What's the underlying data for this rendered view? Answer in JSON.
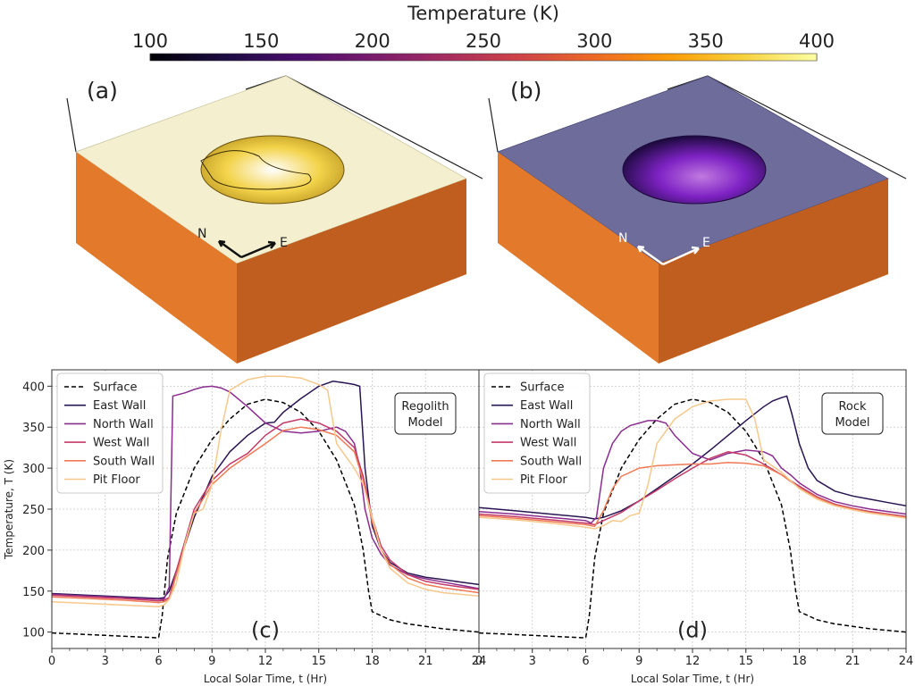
{
  "colorbar": {
    "title": "Temperature (K)",
    "ticks": [
      "100",
      "150",
      "200",
      "250",
      "300",
      "350",
      "400"
    ],
    "range": [
      100,
      400
    ],
    "colors": [
      "#000004",
      "#1b0c41",
      "#4a0c6b",
      "#781c6d",
      "#a52c60",
      "#cf4446",
      "#ed6925",
      "#fb9b06",
      "#f7d13d",
      "#fcffa4"
    ]
  },
  "panels3d": [
    {
      "label": "(a)",
      "north": "N",
      "east": "E",
      "surface_color": "#f3efcf",
      "pit_color": "#f0c72f",
      "side_color": "#e3792a",
      "side_dark": "#bf5e1e",
      "arrow_color": "#111111"
    },
    {
      "label": "(b)",
      "north": "N",
      "east": "E",
      "surface_color": "#6e6c9a",
      "pit_color": "#7e22c4",
      "side_color": "#e3792a",
      "side_dark": "#bf5e1e",
      "arrow_color": "#ffffff"
    }
  ],
  "series_style": [
    {
      "name": "Surface",
      "color": "#000000",
      "dash": true
    },
    {
      "name": "East Wall",
      "color": "#2a1553",
      "dash": false
    },
    {
      "name": "North Wall",
      "color": "#8a2d8f",
      "dash": false
    },
    {
      "name": "West Wall",
      "color": "#c43a68",
      "dash": false
    },
    {
      "name": "South Wall",
      "color": "#ef7a55",
      "dash": false
    },
    {
      "name": "Pit Floor",
      "color": "#f6c88c",
      "dash": false
    }
  ],
  "chart_data": [
    {
      "type": "line",
      "panel": "(c)",
      "model_label": [
        "Regolith",
        "Model"
      ],
      "xlabel": "Local Solar Time, t (Hr)",
      "ylabel": "Temperature, T (K)",
      "xlim": [
        0,
        24
      ],
      "ylim": [
        80,
        420
      ],
      "xticks": [
        0,
        3,
        6,
        9,
        12,
        15,
        18,
        21,
        24
      ],
      "yticks": [
        100,
        150,
        200,
        250,
        300,
        350,
        400
      ],
      "grid": true,
      "legend": "top-left",
      "series": [
        {
          "name": "Surface",
          "x": [
            0,
            1,
            2,
            3,
            4,
            5,
            6,
            6.2,
            6.5,
            7,
            8,
            9,
            10,
            11,
            12,
            13,
            14,
            15,
            16,
            17,
            17.5,
            17.8,
            18,
            19,
            20,
            21,
            22,
            23,
            24
          ],
          "y": [
            99,
            98,
            97,
            96,
            95,
            94,
            93,
            120,
            190,
            245,
            300,
            335,
            360,
            378,
            384,
            380,
            368,
            345,
            310,
            255,
            200,
            150,
            125,
            115,
            110,
            107,
            104,
            102,
            100
          ]
        },
        {
          "name": "East Wall",
          "x": [
            0,
            2,
            4,
            6,
            6.3,
            6.6,
            7,
            8,
            9,
            10,
            11,
            12,
            12.5,
            13,
            14,
            15,
            15.8,
            16.5,
            17,
            17.3,
            17.6,
            18,
            18.5,
            19,
            20,
            21,
            22,
            23,
            24
          ],
          "y": [
            147,
            145,
            143,
            141,
            142,
            150,
            175,
            240,
            290,
            320,
            340,
            355,
            356,
            368,
            385,
            400,
            406,
            404,
            402,
            400,
            300,
            230,
            200,
            185,
            172,
            167,
            164,
            161,
            158
          ]
        },
        {
          "name": "North Wall",
          "x": [
            0,
            2,
            4,
            6,
            6.3,
            6.6,
            6.8,
            7.5,
            8,
            8.5,
            9,
            9.5,
            10,
            11,
            12,
            13,
            14,
            15,
            16,
            16.5,
            17,
            17.3,
            17.6,
            18,
            18.5,
            19,
            20,
            21,
            22,
            23,
            24
          ],
          "y": [
            146,
            144,
            142,
            140,
            140,
            155,
            388,
            392,
            396,
            399,
            400,
            398,
            393,
            375,
            355,
            345,
            343,
            345,
            350,
            345,
            330,
            300,
            250,
            215,
            195,
            182,
            170,
            165,
            161,
            157,
            153
          ]
        },
        {
          "name": "West Wall",
          "x": [
            0,
            2,
            4,
            6,
            6.3,
            6.6,
            7,
            8,
            9,
            10,
            11,
            12,
            13,
            14,
            15,
            16,
            17,
            17.5,
            18,
            18.5,
            19,
            20,
            21,
            22,
            23,
            24
          ],
          "y": [
            145,
            143,
            141,
            138,
            139,
            142,
            175,
            250,
            285,
            305,
            318,
            340,
            355,
            360,
            355,
            345,
            325,
            290,
            240,
            205,
            188,
            170,
            162,
            158,
            155,
            152
          ]
        },
        {
          "name": "South Wall",
          "x": [
            0,
            2,
            4,
            6,
            6.3,
            6.6,
            7,
            8,
            9,
            10,
            11,
            12,
            13,
            14,
            15,
            16,
            17,
            17.5,
            18,
            18.5,
            19,
            20,
            21,
            22,
            23,
            24
          ],
          "y": [
            143,
            141,
            139,
            136,
            137,
            140,
            170,
            245,
            280,
            300,
            315,
            330,
            346,
            350,
            347,
            340,
            320,
            285,
            235,
            200,
            183,
            166,
            158,
            154,
            151,
            148
          ]
        },
        {
          "name": "Pit Floor",
          "x": [
            0,
            2,
            4,
            6,
            6.3,
            6.6,
            7,
            7.5,
            8,
            8.5,
            9,
            9.5,
            10,
            11,
            12,
            13,
            14,
            15,
            15.5,
            16,
            16.5,
            17,
            17.5,
            18,
            18.5,
            19,
            20,
            21,
            22,
            23,
            24
          ],
          "y": [
            137,
            135,
            133,
            131,
            133,
            140,
            160,
            210,
            245,
            250,
            280,
            345,
            395,
            408,
            412,
            412,
            410,
            402,
            395,
            330,
            315,
            300,
            280,
            240,
            200,
            178,
            160,
            152,
            148,
            146,
            144
          ]
        }
      ]
    },
    {
      "type": "line",
      "panel": "(d)",
      "model_label": [
        "Rock",
        "Model"
      ],
      "xlabel": "Local Solar Time, t (Hr)",
      "ylabel": "",
      "xlim": [
        0,
        24
      ],
      "ylim": [
        80,
        420
      ],
      "xticks": [
        0,
        3,
        6,
        9,
        12,
        15,
        18,
        21,
        24
      ],
      "yticks": [],
      "grid": true,
      "legend": "top-left",
      "series": [
        {
          "name": "Surface",
          "x": [
            0,
            1,
            2,
            3,
            4,
            5,
            6,
            6.2,
            6.5,
            7,
            8,
            9,
            10,
            11,
            12,
            13,
            14,
            15,
            16,
            17,
            17.5,
            17.8,
            18,
            19,
            20,
            21,
            22,
            23,
            24
          ],
          "y": [
            99,
            98,
            97,
            96,
            95,
            94,
            93,
            120,
            190,
            245,
            300,
            335,
            360,
            378,
            384,
            380,
            368,
            345,
            310,
            255,
            200,
            150,
            125,
            115,
            110,
            107,
            104,
            102,
            100
          ]
        },
        {
          "name": "East Wall",
          "x": [
            0,
            2,
            4,
            6,
            6.5,
            7,
            8,
            9,
            10,
            11,
            12,
            13,
            14,
            15,
            16,
            16.5,
            17,
            17.3,
            17.6,
            18,
            18.5,
            19,
            20,
            21,
            22,
            23,
            24
          ],
          "y": [
            252,
            248,
            244,
            240,
            238,
            240,
            248,
            260,
            275,
            290,
            305,
            322,
            340,
            358,
            375,
            382,
            386,
            388,
            365,
            330,
            300,
            285,
            272,
            266,
            262,
            258,
            254
          ]
        },
        {
          "name": "North Wall",
          "x": [
            0,
            2,
            4,
            6,
            6.3,
            6.6,
            7,
            7.5,
            8,
            8.5,
            9,
            9.5,
            10,
            10.5,
            11,
            12,
            13,
            14,
            15,
            16,
            16.5,
            17,
            17.5,
            18,
            19,
            20,
            21,
            22,
            23,
            24
          ],
          "y": [
            247,
            244,
            240,
            236,
            233,
            240,
            300,
            330,
            345,
            352,
            355,
            358,
            358,
            355,
            340,
            318,
            310,
            318,
            322,
            320,
            315,
            300,
            292,
            282,
            268,
            259,
            254,
            250,
            247,
            244
          ]
        },
        {
          "name": "West Wall",
          "x": [
            0,
            2,
            4,
            6,
            6.5,
            7,
            8,
            9,
            10,
            11,
            12,
            13,
            14,
            15,
            16,
            17,
            17.5,
            18,
            19,
            20,
            21,
            22,
            23,
            24
          ],
          "y": [
            244,
            241,
            237,
            233,
            231,
            236,
            246,
            260,
            273,
            287,
            300,
            312,
            320,
            316,
            305,
            292,
            285,
            278,
            265,
            256,
            251,
            247,
            244,
            241
          ]
        },
        {
          "name": "South Wall",
          "x": [
            0,
            2,
            4,
            6,
            6.5,
            7,
            7.5,
            8,
            9,
            10,
            11,
            12,
            13,
            14,
            15,
            16,
            17,
            18,
            19,
            20,
            21,
            22,
            23,
            24
          ],
          "y": [
            242,
            239,
            235,
            231,
            229,
            248,
            275,
            290,
            300,
            303,
            304,
            305,
            305,
            307,
            306,
            303,
            292,
            276,
            264,
            255,
            250,
            246,
            243,
            240
          ]
        },
        {
          "name": "Pit Floor",
          "x": [
            0,
            2,
            4,
            6,
            6.5,
            7,
            7.5,
            8,
            8.5,
            9,
            9.5,
            10,
            11,
            12,
            13,
            14,
            15,
            15.5,
            16,
            17,
            18,
            19,
            20,
            21,
            22,
            23,
            24
          ],
          "y": [
            240,
            237,
            233,
            228,
            226,
            230,
            236,
            235,
            242,
            245,
            280,
            330,
            360,
            375,
            382,
            384,
            384,
            360,
            310,
            295,
            275,
            262,
            254,
            249,
            245,
            242,
            239
          ]
        }
      ]
    }
  ]
}
